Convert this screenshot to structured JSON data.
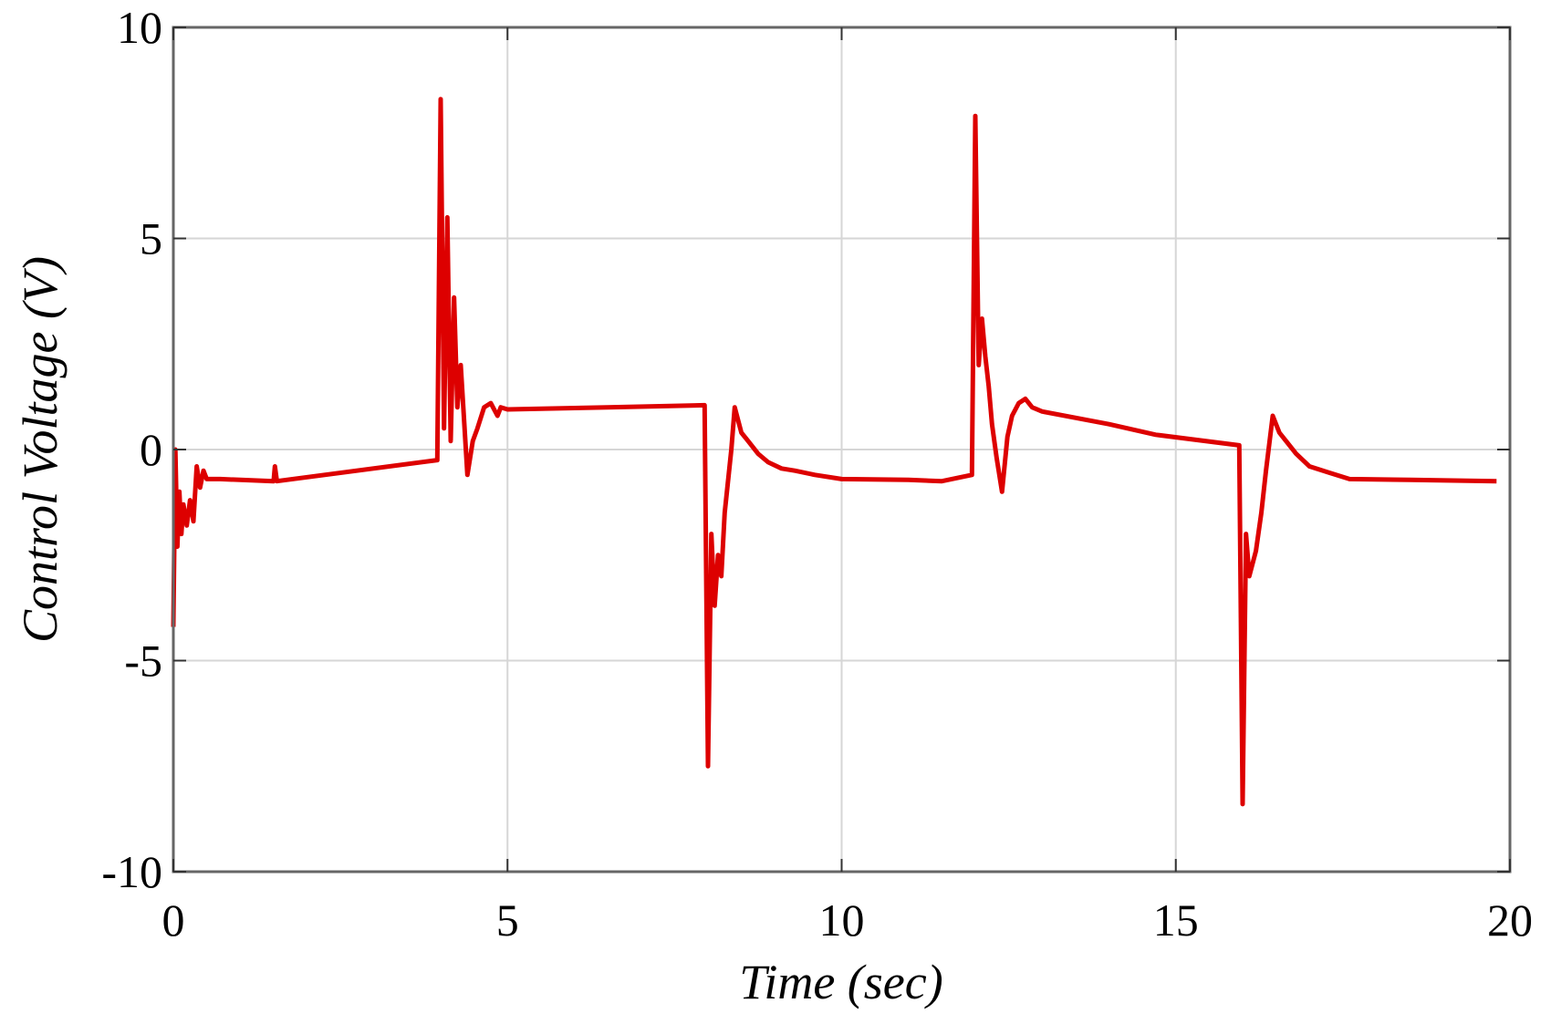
{
  "chart_data": {
    "type": "line",
    "title": "",
    "xlabel": "Time (sec)",
    "ylabel": "Control Voltage (V)",
    "xlim": [
      0,
      20
    ],
    "ylim": [
      -10,
      10
    ],
    "xticks": [
      0,
      5,
      10,
      15,
      20
    ],
    "yticks": [
      -10,
      -5,
      0,
      5,
      10
    ],
    "xtick_labels": [
      "0",
      "5",
      "10",
      "15",
      "20"
    ],
    "ytick_labels": [
      "-10",
      "-5",
      "0",
      "5",
      "10"
    ],
    "grid": true,
    "series": [
      {
        "name": "control voltage",
        "color": "#dd0000",
        "x": [
          0,
          0.03,
          0.06,
          0.09,
          0.12,
          0.15,
          0.2,
          0.25,
          0.3,
          0.35,
          0.4,
          0.45,
          0.5,
          0.7,
          1.0,
          1.5,
          1.52,
          1.55,
          3.95,
          4.0,
          4.05,
          4.1,
          4.15,
          4.2,
          4.25,
          4.3,
          4.4,
          4.48,
          4.55,
          4.65,
          4.75,
          4.85,
          4.9,
          5.0,
          6.5,
          7.95,
          8.0,
          8.05,
          8.1,
          8.15,
          8.2,
          8.25,
          8.35,
          8.4,
          8.5,
          8.6,
          8.75,
          8.9,
          9.1,
          9.3,
          9.6,
          10.0,
          11.0,
          11.5,
          11.95,
          12.0,
          12.05,
          12.1,
          12.15,
          12.2,
          12.25,
          12.32,
          12.4,
          12.48,
          12.55,
          12.65,
          12.75,
          12.85,
          13.0,
          14.0,
          14.7,
          15.95,
          16.0,
          16.05,
          16.1,
          16.2,
          16.28,
          16.35,
          16.45,
          16.55,
          16.65,
          16.8,
          17.0,
          17.3,
          17.6,
          18.5,
          19.8
        ],
        "y": [
          -4.2,
          0.0,
          -2.3,
          -1.0,
          -2.0,
          -1.3,
          -1.8,
          -1.2,
          -1.7,
          -0.4,
          -0.9,
          -0.5,
          -0.7,
          -0.7,
          -0.72,
          -0.75,
          -0.4,
          -0.75,
          -0.25,
          8.3,
          0.5,
          5.5,
          0.2,
          3.6,
          1.0,
          2.0,
          -0.6,
          0.2,
          0.5,
          1.0,
          1.1,
          0.8,
          1.0,
          0.95,
          1.0,
          1.05,
          -7.5,
          -2.0,
          -3.7,
          -2.5,
          -3.0,
          -1.5,
          0.0,
          1.0,
          0.4,
          0.2,
          -0.1,
          -0.3,
          -0.45,
          -0.5,
          -0.6,
          -0.7,
          -0.72,
          -0.75,
          -0.6,
          7.9,
          2.0,
          3.1,
          2.2,
          1.5,
          0.6,
          -0.2,
          -1.0,
          0.3,
          0.8,
          1.1,
          1.2,
          1.0,
          0.9,
          0.6,
          0.35,
          0.1,
          -8.4,
          -2.0,
          -3.0,
          -2.4,
          -1.5,
          -0.5,
          0.8,
          0.4,
          0.2,
          -0.1,
          -0.4,
          -0.55,
          -0.7,
          -0.72,
          -0.75
        ]
      }
    ]
  }
}
